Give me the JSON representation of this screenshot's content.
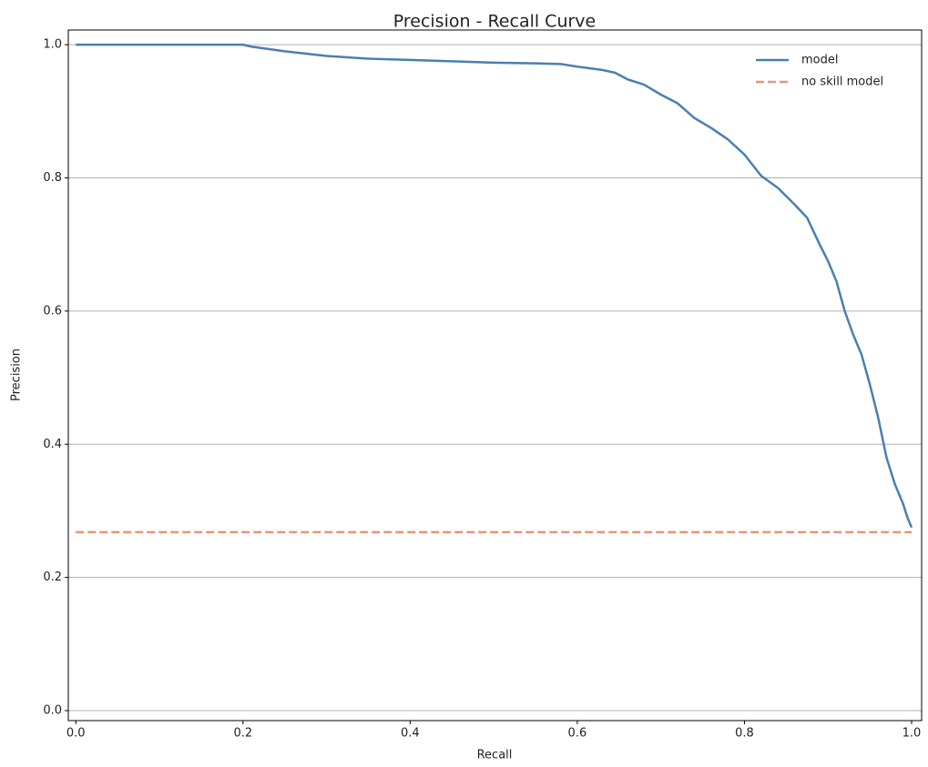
{
  "chart_data": {
    "type": "line",
    "title": "Precision - Recall Curve",
    "x_label": "Recall",
    "y_label": "Precision",
    "series": [
      {
        "name": "model",
        "color": "#4a7fb0",
        "linestyle": "solid",
        "x": [
          0,
          0.2,
          0.21,
          0.25,
          0.3,
          0.35,
          0.4,
          0.45,
          0.5,
          0.55,
          0.58,
          0.6,
          0.63,
          0.645,
          0.66,
          0.68,
          0.7,
          0.72,
          0.74,
          0.76,
          0.78,
          0.8,
          0.82,
          0.84,
          0.86,
          0.875,
          0.89,
          0.9,
          0.91,
          0.92,
          0.93,
          0.94,
          0.95,
          0.96,
          0.97,
          0.98,
          0.99,
          0.995,
          1
        ],
        "values": [
          1,
          1,
          0.997,
          0.99,
          0.983,
          0.979,
          0.977,
          0.975,
          0.973,
          0.972,
          0.971,
          0.967,
          0.962,
          0.958,
          0.948,
          0.94,
          0.925,
          0.912,
          0.89,
          0.875,
          0.858,
          0.835,
          0.803,
          0.785,
          0.76,
          0.74,
          0.7,
          0.675,
          0.645,
          0.6,
          0.565,
          0.535,
          0.49,
          0.44,
          0.38,
          0.34,
          0.31,
          0.29,
          0.275
        ]
      },
      {
        "name": "no skill model",
        "color": "#e4967a",
        "linestyle": "dashed",
        "x": [
          0,
          1
        ],
        "values": [
          0.268,
          0.268
        ]
      }
    ],
    "xlim": [
      -0.009,
      1.012
    ],
    "ylim": [
      -0.015,
      1.022
    ],
    "xticks": [
      {
        "value": 0,
        "label": "0.0"
      },
      0.2,
      0.4,
      0.6,
      0.8,
      {
        "value": 1,
        "label": "1.0"
      }
    ],
    "yticks": [
      {
        "value": 0,
        "label": "0.0"
      },
      0.2,
      0.4,
      0.6,
      0.8,
      {
        "value": 1,
        "label": "1.0"
      }
    ],
    "grid": "y",
    "legend": "upper right"
  }
}
